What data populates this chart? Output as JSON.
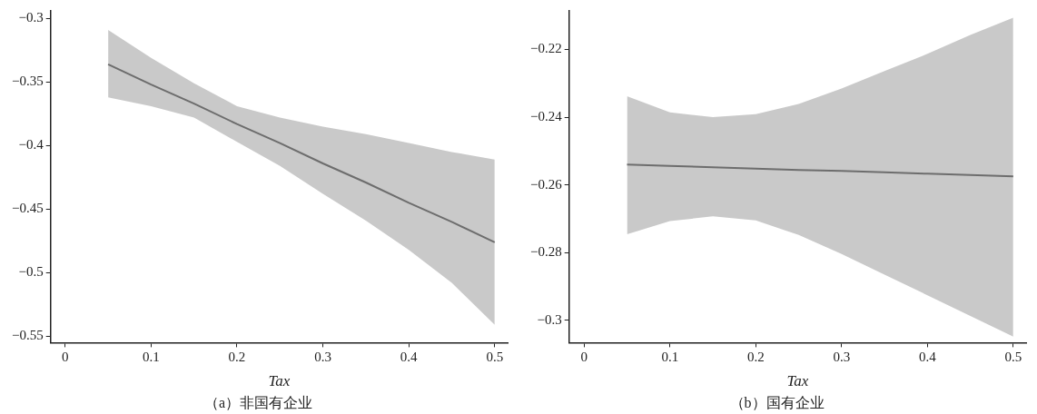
{
  "chart_data": [
    {
      "type": "line",
      "title": "（a）非国有企业",
      "xlabel": "Tax",
      "grid": false,
      "legend": false,
      "marker": "none",
      "line_style": "solid",
      "xlim": [
        -0.017,
        0.515
      ],
      "xticks": [
        0,
        0.1,
        0.2,
        0.3,
        0.4,
        0.5
      ],
      "ylim": [
        -0.555,
        -0.294
      ],
      "yticks": [
        {
          "value": -0.3,
          "label": "−0.3"
        },
        {
          "value": -0.35,
          "label": "−0.35"
        },
        {
          "value": -0.4,
          "label": "−0.4"
        },
        {
          "value": -0.45,
          "label": "−0.45"
        },
        {
          "value": -0.5,
          "label": "−0.5"
        },
        {
          "value": -0.55,
          "label": "−0.55"
        }
      ],
      "series": [
        {
          "color": "#6d6d6d",
          "x": [
            0.05,
            0.1,
            0.15,
            0.2,
            0.25,
            0.3,
            0.35,
            0.4,
            0.45,
            0.5
          ],
          "values": [
            -0.336,
            -0.352,
            -0.367,
            -0.383,
            -0.398,
            -0.414,
            -0.429,
            -0.445,
            -0.46,
            -0.476
          ],
          "lower": [
            -0.362,
            -0.369,
            -0.378,
            -0.397,
            -0.416,
            -0.438,
            -0.459,
            -0.482,
            -0.508,
            -0.541
          ],
          "upper": [
            -0.309,
            -0.331,
            -0.351,
            -0.369,
            -0.378,
            -0.385,
            -0.391,
            -0.398,
            -0.405,
            -0.411
          ]
        }
      ]
    },
    {
      "type": "line",
      "title": "（b）国有企业",
      "xlabel": "Tax",
      "grid": false,
      "legend": false,
      "marker": "none",
      "line_style": "solid",
      "xlim": [
        -0.0175,
        0.515
      ],
      "xticks": [
        0,
        0.1,
        0.2,
        0.3,
        0.4,
        0.5
      ],
      "ylim": [
        -0.3066,
        -0.2086
      ],
      "yticks": [
        {
          "value": -0.22,
          "label": "−0.22"
        },
        {
          "value": -0.24,
          "label": "−0.24"
        },
        {
          "value": -0.26,
          "label": "−0.26"
        },
        {
          "value": -0.28,
          "label": "−0.28"
        },
        {
          "value": -0.3,
          "label": "−0.3"
        }
      ],
      "series": [
        {
          "color": "#6d6d6d",
          "x": [
            0.05,
            0.1,
            0.15,
            0.2,
            0.25,
            0.3,
            0.35,
            0.4,
            0.45,
            0.5
          ],
          "values": [
            -0.254,
            -0.2544,
            -0.2548,
            -0.2552,
            -0.2556,
            -0.2559,
            -0.2563,
            -0.2567,
            -0.2571,
            -0.2575
          ],
          "lower": [
            -0.2746,
            -0.2707,
            -0.2693,
            -0.2705,
            -0.2748,
            -0.2804,
            -0.2865,
            -0.2926,
            -0.2987,
            -0.3048
          ],
          "upper": [
            -0.2338,
            -0.2386,
            -0.24,
            -0.2391,
            -0.2361,
            -0.2315,
            -0.2264,
            -0.2213,
            -0.2157,
            -0.2106
          ]
        }
      ]
    }
  ]
}
